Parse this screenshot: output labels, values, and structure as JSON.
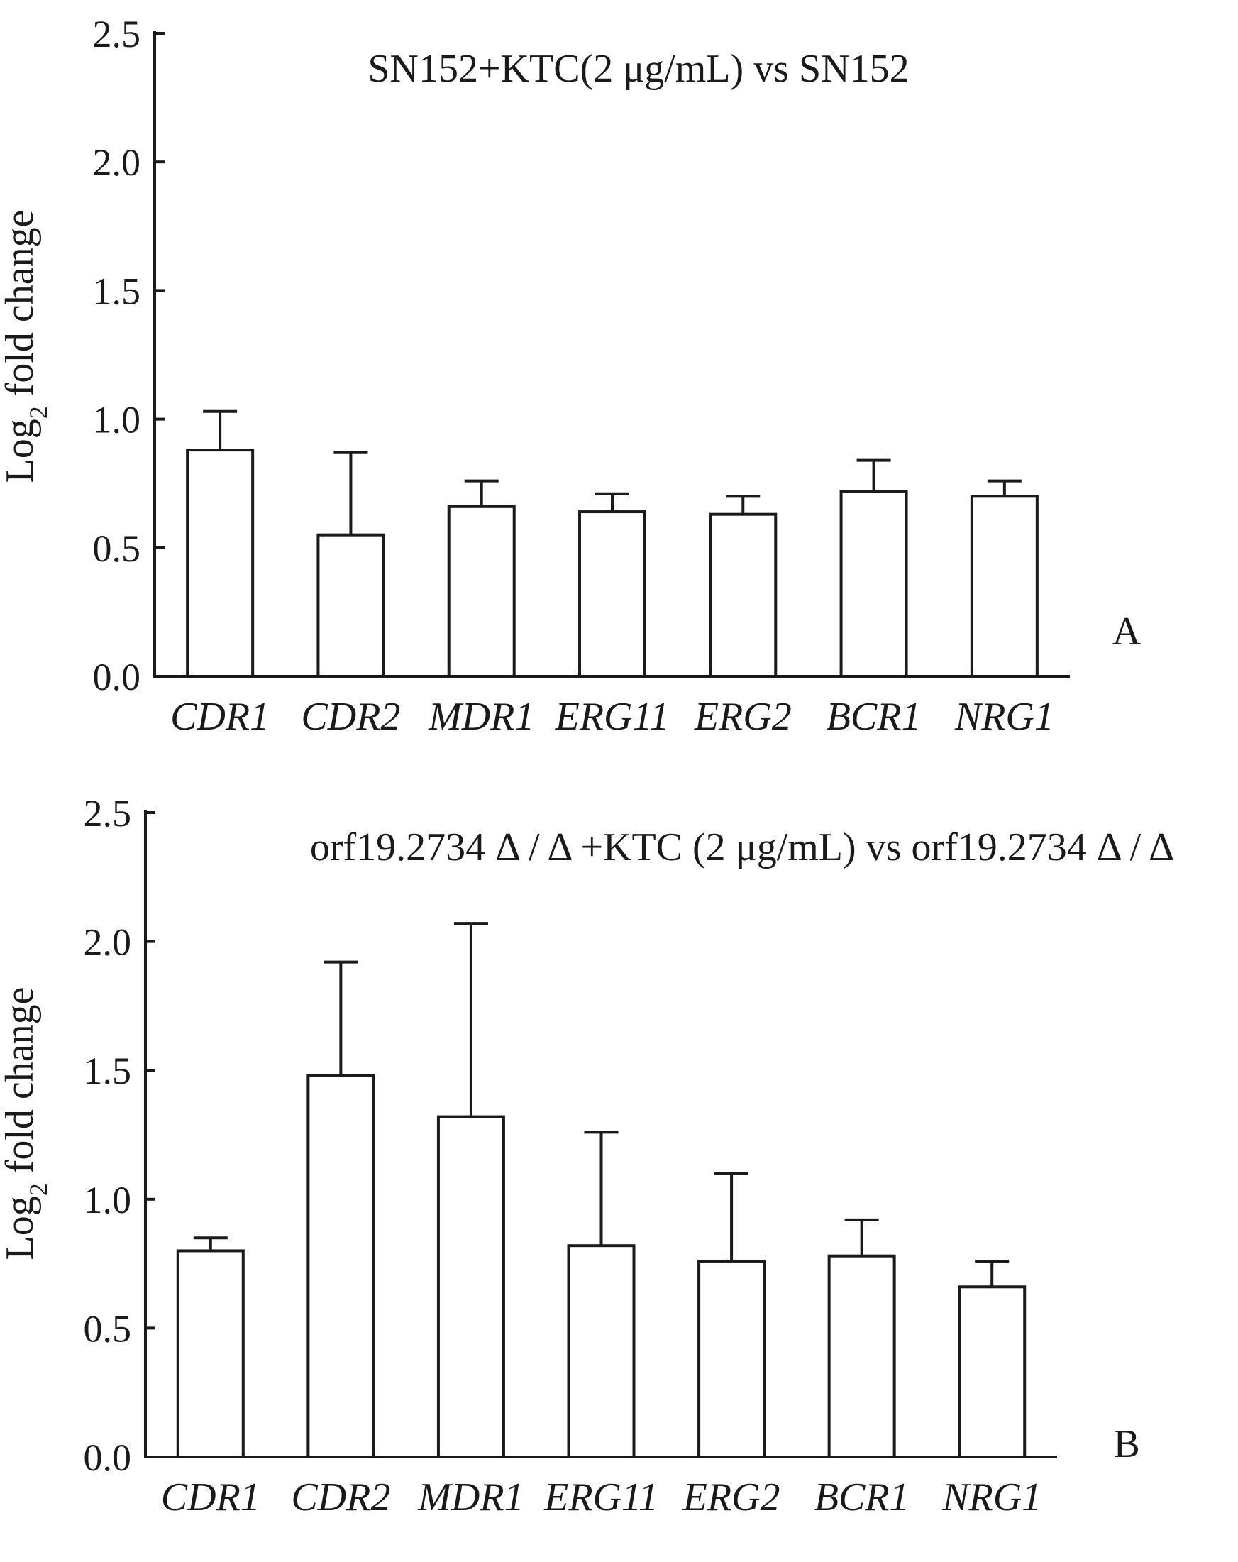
{
  "chart_data": [
    {
      "type": "bar",
      "panel_label": "A",
      "title": "SN152+KTC(2 μg/mL) vs SN152",
      "ylabel": "Log",
      "ylabel_sub": "2",
      "ylabel_rest": " fold change",
      "xlabel": "",
      "ylim": [
        0,
        2.5
      ],
      "yticks": [
        "0.0",
        "0.5",
        "1.0",
        "1.5",
        "2.0",
        "2.5"
      ],
      "categories": [
        "CDR1",
        "CDR2",
        "MDR1",
        "ERG11",
        "ERG2",
        "BCR1",
        "NRG1"
      ],
      "values": [
        0.88,
        0.55,
        0.66,
        0.64,
        0.63,
        0.72,
        0.7
      ],
      "errors": [
        0.15,
        0.32,
        0.1,
        0.07,
        0.07,
        0.12,
        0.06
      ],
      "grid": false,
      "legend": "none"
    },
    {
      "type": "bar",
      "panel_label": "B",
      "title": "orf19.2734 Δ / Δ +KTC (2 μg/mL) vs orf19.2734 Δ / Δ",
      "ylabel": "Log",
      "ylabel_sub": "2",
      "ylabel_rest": " fold change",
      "xlabel": "",
      "ylim": [
        0,
        2.5
      ],
      "yticks": [
        "0.0",
        "0.5",
        "1.0",
        "1.5",
        "2.0",
        "2.5"
      ],
      "categories": [
        "CDR1",
        "CDR2",
        "MDR1",
        "ERG11",
        "ERG2",
        "BCR1",
        "NRG1"
      ],
      "values": [
        0.8,
        1.48,
        1.32,
        0.82,
        0.76,
        0.78,
        0.66
      ],
      "errors": [
        0.05,
        0.44,
        0.75,
        0.44,
        0.34,
        0.14,
        0.1
      ],
      "grid": false,
      "legend": "none"
    }
  ]
}
